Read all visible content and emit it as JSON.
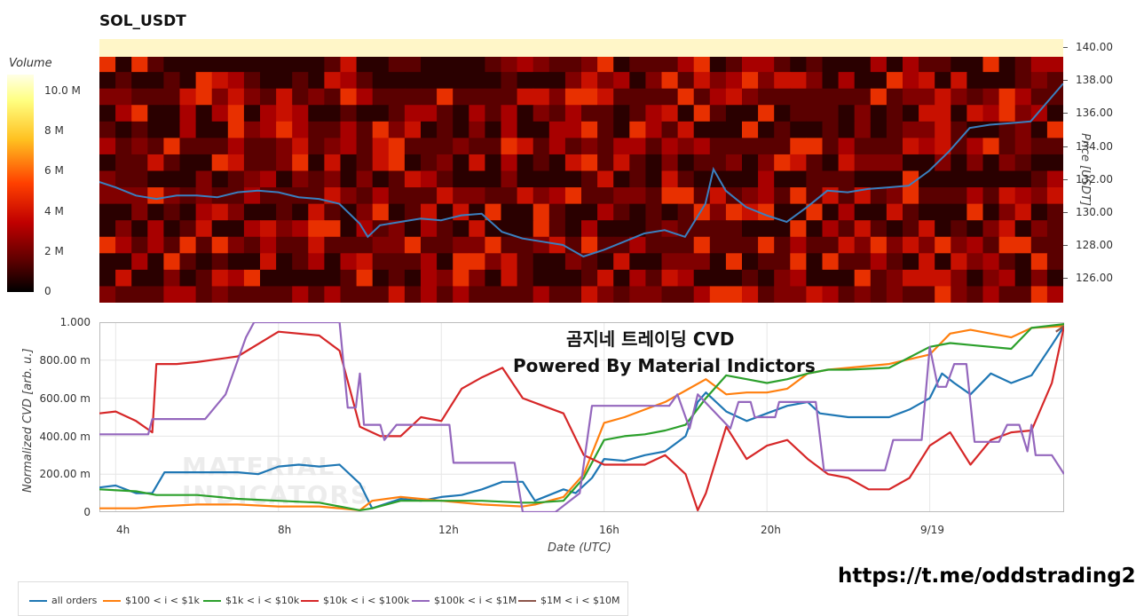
{
  "heatmap_chart": {
    "title": "SOL_USDT",
    "colorbar_label": "Volume",
    "colorbar_ticks": [
      "10.0 M",
      "8 M",
      "6 M",
      "4 M",
      "2 M",
      "0"
    ],
    "price_axis_label": "Price [USDT]",
    "price_ticks": [
      "140.00",
      "138.00",
      "136.00",
      "134.00",
      "132.00",
      "130.00",
      "128.00",
      "126.00"
    ]
  },
  "cvd_chart": {
    "ylabel": "Normalized CVD [arb. u.]",
    "xlabel": "Date (UTC)",
    "y_ticks": [
      "1.000",
      "800.00 m",
      "600.00 m",
      "400.00 m",
      "200.00 m",
      "0"
    ],
    "x_ticks": [
      "4h",
      "8h",
      "12h",
      "16h",
      "20h",
      "9/19"
    ],
    "overlay_title_line1": "곰지네 트레이딩 CVD",
    "overlay_title_line2": "Powered By Material Indictors",
    "watermark_line1": "MATERIAL",
    "watermark_line2": "INDICATORS"
  },
  "legend": [
    {
      "label": "all orders",
      "color": "#1f77b4"
    },
    {
      "label": "$100 < i < $1k",
      "color": "#ff7f0e"
    },
    {
      "label": "$1k < i < $10k",
      "color": "#2ca02c"
    },
    {
      "label": "$10k < i < $100k",
      "color": "#d62728"
    },
    {
      "label": "$100k < i < $1M",
      "color": "#9467bd"
    },
    {
      "label": "$1M < i < $10M",
      "color": "#8c564b"
    }
  ],
  "link_text": "https://t.me/oddstrading2",
  "chart_data": [
    {
      "type": "heatmap",
      "title": "SOL_USDT",
      "colorbar": {
        "label": "Volume",
        "range": [
          0,
          11000000
        ]
      },
      "ylabel": "Price [USDT]",
      "ylim": [
        124.5,
        140.5
      ],
      "price_series": {
        "name": "Price",
        "color": "#3a7fbf",
        "x_hours": [
          3.5,
          4.0,
          4.5,
          5.0,
          5.5,
          6.0,
          6.5,
          7.0,
          7.5,
          8.0,
          8.5,
          9.0,
          9.5,
          10.0,
          10.2,
          10.5,
          11.0,
          11.5,
          12.0,
          12.5,
          13.0,
          13.5,
          14.0,
          14.5,
          15.0,
          15.5,
          16.0,
          16.5,
          17.0,
          17.5,
          18.0,
          18.5,
          18.7,
          19.0,
          19.5,
          20.0,
          20.5,
          21.0,
          21.5,
          22.0,
          22.5,
          23.0,
          23.5,
          24.0,
          24.5,
          25.0,
          25.5,
          26.0,
          26.5,
          27.3
        ],
        "y": [
          131.9,
          131.5,
          131.0,
          130.8,
          131.0,
          131.0,
          130.9,
          131.2,
          131.3,
          131.2,
          130.9,
          130.8,
          130.5,
          129.3,
          128.5,
          129.2,
          129.4,
          129.6,
          129.5,
          129.8,
          129.9,
          128.8,
          128.4,
          128.2,
          128.0,
          127.3,
          127.7,
          128.2,
          128.7,
          128.9,
          128.5,
          130.5,
          132.6,
          131.3,
          130.3,
          129.8,
          129.4,
          130.3,
          131.3,
          131.2,
          131.4,
          131.5,
          131.6,
          132.5,
          133.7,
          135.1,
          135.3,
          135.4,
          135.5,
          137.8
        ]
      }
    },
    {
      "type": "line",
      "xlabel": "Date (UTC)",
      "ylabel": "Normalized CVD [arb. u.]",
      "ylim": [
        0,
        1.0
      ],
      "xlim": [
        3.6,
        27.3
      ],
      "x_tick_values": [
        4,
        8,
        12,
        16,
        20,
        24
      ],
      "x_tick_labels": [
        "4h",
        "8h",
        "12h",
        "16h",
        "20h",
        "9/19"
      ],
      "series": [
        {
          "name": "all orders",
          "color": "#1f77b4",
          "x": [
            3.6,
            4.0,
            4.5,
            4.9,
            5.2,
            6.0,
            7.0,
            7.5,
            8.0,
            8.5,
            9.0,
            9.5,
            10.0,
            10.3,
            11.0,
            11.5,
            12.0,
            12.5,
            13.0,
            13.5,
            14.0,
            14.3,
            15.0,
            15.3,
            15.7,
            16.0,
            16.5,
            17.0,
            17.5,
            18.0,
            18.3,
            18.5,
            19.0,
            19.5,
            20.0,
            20.5,
            21.0,
            21.3,
            22.0,
            22.5,
            23.0,
            23.5,
            24.0,
            24.3,
            24.6,
            25.0,
            25.5,
            26.0,
            26.5,
            27.0,
            27.3
          ],
          "y": [
            0.13,
            0.14,
            0.1,
            0.1,
            0.21,
            0.21,
            0.21,
            0.2,
            0.24,
            0.25,
            0.24,
            0.25,
            0.15,
            0.02,
            0.07,
            0.06,
            0.08,
            0.09,
            0.12,
            0.16,
            0.16,
            0.06,
            0.12,
            0.1,
            0.18,
            0.28,
            0.27,
            0.3,
            0.32,
            0.4,
            0.58,
            0.63,
            0.53,
            0.48,
            0.52,
            0.56,
            0.58,
            0.52,
            0.5,
            0.5,
            0.5,
            0.54,
            0.6,
            0.73,
            0.68,
            0.62,
            0.73,
            0.68,
            0.72,
            0.88,
            0.98
          ]
        },
        {
          "name": "$100 < i < $1k",
          "color": "#ff7f0e",
          "x": [
            3.6,
            4.5,
            5.0,
            6.0,
            7.0,
            8.0,
            9.0,
            9.5,
            10.0,
            10.3,
            11.0,
            12.0,
            13.0,
            14.0,
            14.3,
            15.0,
            15.5,
            16.0,
            16.5,
            17.0,
            17.5,
            18.0,
            18.5,
            19.0,
            19.5,
            20.0,
            20.5,
            21.0,
            21.5,
            22.0,
            23.0,
            24.0,
            24.5,
            25.0,
            26.0,
            26.5,
            27.3
          ],
          "y": [
            0.02,
            0.02,
            0.03,
            0.04,
            0.04,
            0.03,
            0.03,
            0.02,
            0.01,
            0.06,
            0.08,
            0.06,
            0.04,
            0.03,
            0.04,
            0.08,
            0.2,
            0.47,
            0.5,
            0.54,
            0.58,
            0.64,
            0.7,
            0.62,
            0.63,
            0.63,
            0.65,
            0.73,
            0.75,
            0.76,
            0.78,
            0.83,
            0.94,
            0.96,
            0.92,
            0.97,
            0.98
          ]
        },
        {
          "name": "$1k < i < $10k",
          "color": "#2ca02c",
          "x": [
            3.6,
            4.5,
            5.0,
            6.0,
            7.0,
            8.0,
            9.0,
            9.5,
            10.0,
            10.3,
            11.0,
            12.0,
            13.0,
            14.0,
            14.3,
            15.0,
            15.5,
            16.0,
            16.5,
            17.0,
            17.5,
            18.0,
            18.5,
            19.0,
            19.5,
            20.0,
            20.5,
            21.0,
            21.5,
            22.0,
            23.0,
            24.0,
            24.5,
            25.0,
            26.0,
            26.5,
            27.3
          ],
          "y": [
            0.12,
            0.11,
            0.09,
            0.09,
            0.07,
            0.06,
            0.05,
            0.03,
            0.01,
            0.02,
            0.06,
            0.06,
            0.06,
            0.05,
            0.05,
            0.06,
            0.18,
            0.38,
            0.4,
            0.41,
            0.43,
            0.46,
            0.6,
            0.72,
            0.7,
            0.68,
            0.7,
            0.73,
            0.75,
            0.75,
            0.76,
            0.87,
            0.89,
            0.88,
            0.86,
            0.97,
            0.99
          ]
        },
        {
          "name": "$10k < i < $100k",
          "color": "#d62728",
          "x": [
            3.6,
            4.0,
            4.5,
            4.9,
            5.0,
            5.5,
            6.0,
            7.0,
            8.0,
            9.0,
            9.5,
            10.0,
            10.5,
            11.0,
            11.5,
            12.0,
            12.5,
            13.0,
            13.5,
            14.0,
            14.5,
            15.0,
            15.5,
            16.0,
            16.5,
            17.0,
            17.5,
            18.0,
            18.3,
            18.5,
            19.0,
            19.5,
            20.0,
            20.5,
            21.0,
            21.5,
            22.0,
            22.5,
            23.0,
            23.5,
            24.0,
            24.5,
            25.0,
            25.5,
            26.0,
            26.5,
            27.0,
            27.3
          ],
          "y": [
            0.52,
            0.53,
            0.48,
            0.42,
            0.78,
            0.78,
            0.79,
            0.82,
            0.95,
            0.93,
            0.85,
            0.45,
            0.4,
            0.4,
            0.5,
            0.48,
            0.65,
            0.71,
            0.76,
            0.6,
            0.56,
            0.52,
            0.3,
            0.25,
            0.25,
            0.25,
            0.3,
            0.2,
            0.01,
            0.1,
            0.45,
            0.28,
            0.35,
            0.38,
            0.28,
            0.2,
            0.18,
            0.12,
            0.12,
            0.18,
            0.35,
            0.42,
            0.25,
            0.38,
            0.42,
            0.43,
            0.68,
            0.98
          ]
        },
        {
          "name": "$100k < i < $1M",
          "color": "#9467bd",
          "x": [
            3.6,
            4.8,
            4.9,
            6.2,
            6.7,
            7.2,
            7.4,
            9.5,
            9.7,
            9.9,
            10.0,
            10.1,
            10.2,
            10.5,
            10.6,
            10.9,
            11.1,
            12.2,
            12.3,
            13.8,
            14.0,
            14.8,
            15.4,
            15.7,
            15.8,
            17.6,
            17.8,
            18.1,
            18.3,
            19.1,
            19.3,
            19.6,
            19.7,
            20.2,
            20.3,
            21.2,
            21.4,
            22.9,
            23.1,
            23.8,
            24.0,
            24.2,
            24.4,
            24.6,
            24.9,
            25.1,
            25.3,
            25.7,
            25.9,
            26.2,
            26.4,
            26.5,
            26.6,
            27.0,
            27.3
          ],
          "y": [
            0.41,
            0.41,
            0.49,
            0.49,
            0.62,
            0.92,
            1.0,
            1.0,
            0.55,
            0.55,
            0.73,
            0.46,
            0.46,
            0.46,
            0.38,
            0.46,
            0.46,
            0.46,
            0.26,
            0.26,
            0.0,
            0.0,
            0.1,
            0.56,
            0.56,
            0.56,
            0.62,
            0.44,
            0.62,
            0.44,
            0.58,
            0.58,
            0.5,
            0.5,
            0.58,
            0.58,
            0.22,
            0.22,
            0.38,
            0.38,
            0.87,
            0.66,
            0.66,
            0.78,
            0.78,
            0.37,
            0.37,
            0.37,
            0.46,
            0.46,
            0.32,
            0.46,
            0.3,
            0.3,
            0.2
          ]
        },
        {
          "name": "$1M < i < $10M",
          "color": "#8c564b",
          "x": [
            27.1,
            27.3
          ],
          "y": [
            0.95,
            0.98
          ]
        }
      ]
    }
  ]
}
